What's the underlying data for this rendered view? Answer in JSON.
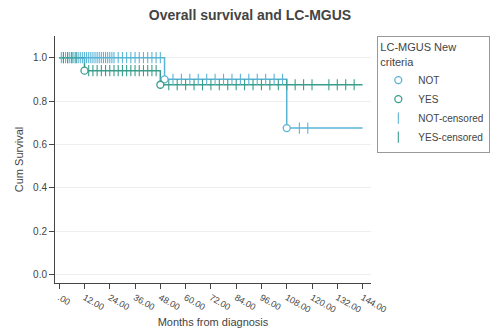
{
  "chart_data": {
    "type": "step",
    "title": "Overall survival and LC-MGUS",
    "xlabel": "Months from diagnosis",
    "ylabel": "Cum Survival",
    "legend_title": "LC-MGUS New\ncriteria",
    "xlim": [
      -2,
      148
    ],
    "ylim": [
      -0.04,
      1.1
    ],
    "xticks": [
      {
        "value": 0,
        "label": ".00"
      },
      {
        "value": 12,
        "label": "12.00"
      },
      {
        "value": 24,
        "label": "24.00"
      },
      {
        "value": 36,
        "label": "36.00"
      },
      {
        "value": 48,
        "label": "48.00"
      },
      {
        "value": 60,
        "label": "60.00"
      },
      {
        "value": 72,
        "label": "72.00"
      },
      {
        "value": 84,
        "label": "84.00"
      },
      {
        "value": 96,
        "label": "96.00"
      },
      {
        "value": 108,
        "label": "108.00"
      },
      {
        "value": 120,
        "label": "120.00"
      },
      {
        "value": 132,
        "label": "132.00"
      },
      {
        "value": 144,
        "label": "144.00"
      }
    ],
    "yticks": [
      {
        "value": 0.0,
        "label": "0.0"
      },
      0.2,
      0.4,
      0.6,
      0.8,
      {
        "value": 1.0,
        "label": "1.0"
      }
    ],
    "grid": "y",
    "legend": "upper right",
    "series": [
      {
        "name": "NOT",
        "type": "step",
        "marker": "circle",
        "color": "#5ab4d6",
        "x": [
          0,
          50,
          50,
          62,
          62,
          108,
          108,
          144
        ],
        "values": [
          1.0,
          1.0,
          0.9,
          0.9,
          0.9,
          0.9,
          0.675,
          0.675
        ],
        "event_x": [
          50,
          108
        ],
        "event_values": [
          0.9,
          0.675
        ]
      },
      {
        "name": "YES",
        "type": "step",
        "marker": "circle",
        "color": "#3a9e8c",
        "x": [
          0,
          12,
          12,
          48,
          48,
          144
        ],
        "values": [
          1.0,
          1.0,
          0.94,
          0.94,
          0.875,
          0.875
        ],
        "event_x": [
          12,
          48
        ],
        "event_values": [
          0.94,
          0.875
        ]
      },
      {
        "name": "NOT-censored",
        "type": "scatter",
        "marker": "tick",
        "color": "#5ab4d6",
        "x": [
          1,
          2,
          3,
          4,
          5,
          6,
          7,
          8,
          9,
          10,
          11,
          12,
          13,
          14,
          15,
          16,
          17,
          18,
          19,
          20,
          21,
          22,
          23,
          24,
          25,
          26,
          28,
          30,
          32,
          34,
          36,
          38,
          40,
          42,
          44,
          46,
          48,
          54,
          58,
          62,
          66,
          70,
          74,
          78,
          82,
          86,
          90,
          94,
          98,
          102,
          106,
          114,
          118
        ],
        "values": [
          1.0,
          1.0,
          1.0,
          1.0,
          1.0,
          1.0,
          1.0,
          1.0,
          1.0,
          1.0,
          1.0,
          1.0,
          1.0,
          1.0,
          1.0,
          1.0,
          1.0,
          1.0,
          1.0,
          1.0,
          1.0,
          1.0,
          1.0,
          1.0,
          1.0,
          1.0,
          1.0,
          1.0,
          1.0,
          1.0,
          1.0,
          1.0,
          1.0,
          1.0,
          1.0,
          1.0,
          1.0,
          0.9,
          0.9,
          0.9,
          0.9,
          0.9,
          0.9,
          0.9,
          0.9,
          0.9,
          0.9,
          0.9,
          0.9,
          0.9,
          0.9,
          0.675,
          0.675
        ]
      },
      {
        "name": "YES-censored",
        "type": "scatter",
        "marker": "tick",
        "color": "#3a9e8c",
        "x": [
          2,
          4,
          6,
          8,
          14,
          16,
          18,
          20,
          22,
          24,
          26,
          28,
          30,
          32,
          34,
          36,
          38,
          40,
          42,
          44,
          46,
          52,
          56,
          60,
          64,
          68,
          72,
          76,
          80,
          84,
          88,
          92,
          96,
          100,
          104,
          108,
          112,
          116,
          120,
          128,
          132,
          136,
          140
        ],
        "values": [
          1.0,
          1.0,
          1.0,
          1.0,
          0.94,
          0.94,
          0.94,
          0.94,
          0.94,
          0.94,
          0.94,
          0.94,
          0.94,
          0.94,
          0.94,
          0.94,
          0.94,
          0.94,
          0.94,
          0.94,
          0.94,
          0.875,
          0.875,
          0.875,
          0.875,
          0.875,
          0.875,
          0.875,
          0.875,
          0.875,
          0.875,
          0.875,
          0.875,
          0.875,
          0.875,
          0.875,
          0.875,
          0.875,
          0.875,
          0.875,
          0.875,
          0.875,
          0.875
        ]
      }
    ]
  }
}
